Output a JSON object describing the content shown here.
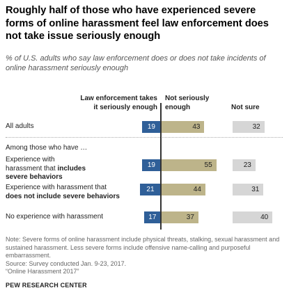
{
  "title": "Roughly half of those who have experienced severe forms of online harassment feel law enforcement does not take issue seriously enough",
  "subtitle": "% of U.S. adults who say law enforcement does or does not take incidents of online harassment seriously enough",
  "section_label": "Among those who have …",
  "note": "Note: Severe forms of online harassment include physical threats, stalking, sexual harassment and sustained harassment. Less severe forms include offensive name-calling and purposeful embarrassment.",
  "source": "Source: Survey conducted Jan. 9-23, 2017.",
  "report": "“Online Harassment 2017”",
  "footer": "PEW RESEARCH CENTER",
  "colors": {
    "takes_seriously": "#2f5f98",
    "not_seriously": "#bdb48a",
    "not_sure": "#d6d6d6"
  },
  "chart_data": {
    "type": "bar",
    "stacked": "diverging",
    "series": [
      {
        "name": "Law enforcement takes it seriously enough",
        "values": [
          19,
          19,
          21,
          17
        ]
      },
      {
        "name": "Not seriously enough",
        "values": [
          43,
          55,
          44,
          37
        ]
      },
      {
        "name": "Not sure",
        "values": [
          32,
          23,
          31,
          40
        ]
      }
    ],
    "categories": [
      {
        "pre": "All adults",
        "bold": "",
        "post": ""
      },
      {
        "pre": "Experience with harassment that ",
        "bold": "includes severe behaviors",
        "post": ""
      },
      {
        "pre": "Experience with harassment that ",
        "bold": "does not include severe behaviors",
        "post": ""
      },
      {
        "pre": "No experience with harassment",
        "bold": "",
        "post": ""
      }
    ]
  }
}
